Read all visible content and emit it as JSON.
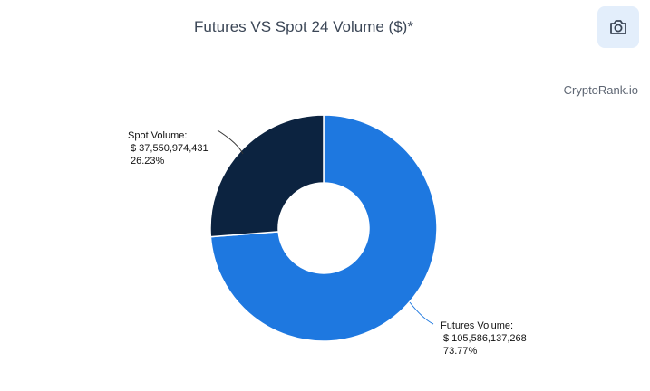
{
  "header": {
    "title": "Futures VS Spot 24 Volume ($)*",
    "watermark": "CryptoRank.io",
    "camera_icon": "camera-icon"
  },
  "chart_data": {
    "type": "pie",
    "style": "donut",
    "title": "Futures VS Spot 24 Volume ($)*",
    "slices": [
      {
        "name": "Futures Volume:",
        "value_label": "$ 105,586,137,268",
        "value": 105586137268,
        "percent_label": "73.77%",
        "percent": 73.77,
        "color": "#1e78e0"
      },
      {
        "name": "Spot Volume:",
        "value_label": "$ 37,550,974,431",
        "value": 37550974431,
        "percent_label": "26.23%",
        "percent": 26.23,
        "color": "#0c2340"
      }
    ]
  }
}
